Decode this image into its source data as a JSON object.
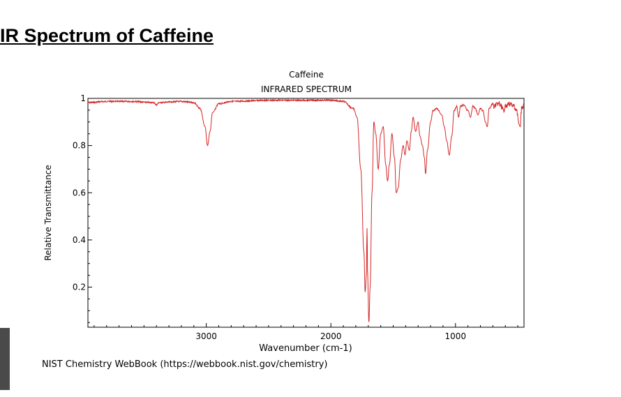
{
  "heading": " IR Spectrum of Caffeine",
  "source": "NIST Chemistry WebBook (https://webbook.nist.gov/chemistry)",
  "chart_data": {
    "type": "line",
    "title": "Caffeine",
    "subtitle": "INFRARED SPECTRUM",
    "xlabel": "Wavenumber (cm-1)",
    "ylabel": "Relative Transmittance",
    "xlim": [
      3950,
      450
    ],
    "ylim": [
      0.03,
      1.0
    ],
    "x_reversed": true,
    "x_ticks": [
      3000,
      2000,
      1000
    ],
    "x_tick_labels": [
      "3000",
      "2000",
      "1000"
    ],
    "y_ticks": [
      0.2,
      0.4,
      0.6,
      0.8,
      1.0
    ],
    "y_tick_labels": [
      "0.2",
      "0.4",
      "0.6",
      "0.8",
      "1"
    ],
    "grid": false,
    "series": [
      {
        "color": "#d62728",
        "baseline": 0.99,
        "points": [
          [
            3950,
            0.985
          ],
          [
            3800,
            0.99
          ],
          [
            3600,
            0.99
          ],
          [
            3420,
            0.985
          ],
          [
            3400,
            0.975
          ],
          [
            3380,
            0.985
          ],
          [
            3200,
            0.99
          ],
          [
            3100,
            0.985
          ],
          [
            3050,
            0.96
          ],
          [
            3010,
            0.88
          ],
          [
            2990,
            0.8
          ],
          [
            2970,
            0.86
          ],
          [
            2950,
            0.94
          ],
          [
            2900,
            0.98
          ],
          [
            2800,
            0.99
          ],
          [
            2500,
            0.995
          ],
          [
            2000,
            0.995
          ],
          [
            1900,
            0.99
          ],
          [
            1820,
            0.96
          ],
          [
            1790,
            0.92
          ],
          [
            1760,
            0.7
          ],
          [
            1735,
            0.35
          ],
          [
            1725,
            0.18
          ],
          [
            1715,
            0.25
          ],
          [
            1710,
            0.45
          ],
          [
            1705,
            0.25
          ],
          [
            1695,
            0.05
          ],
          [
            1685,
            0.2
          ],
          [
            1670,
            0.6
          ],
          [
            1655,
            0.9
          ],
          [
            1640,
            0.85
          ],
          [
            1620,
            0.7
          ],
          [
            1600,
            0.85
          ],
          [
            1580,
            0.88
          ],
          [
            1560,
            0.72
          ],
          [
            1545,
            0.65
          ],
          [
            1530,
            0.72
          ],
          [
            1510,
            0.85
          ],
          [
            1490,
            0.75
          ],
          [
            1475,
            0.6
          ],
          [
            1460,
            0.62
          ],
          [
            1440,
            0.74
          ],
          [
            1420,
            0.8
          ],
          [
            1405,
            0.76
          ],
          [
            1390,
            0.82
          ],
          [
            1370,
            0.78
          ],
          [
            1355,
            0.86
          ],
          [
            1340,
            0.92
          ],
          [
            1320,
            0.86
          ],
          [
            1300,
            0.9
          ],
          [
            1285,
            0.84
          ],
          [
            1265,
            0.8
          ],
          [
            1250,
            0.75
          ],
          [
            1240,
            0.68
          ],
          [
            1225,
            0.78
          ],
          [
            1200,
            0.9
          ],
          [
            1180,
            0.95
          ],
          [
            1150,
            0.96
          ],
          [
            1110,
            0.93
          ],
          [
            1090,
            0.88
          ],
          [
            1070,
            0.82
          ],
          [
            1050,
            0.76
          ],
          [
            1030,
            0.84
          ],
          [
            1010,
            0.95
          ],
          [
            990,
            0.97
          ],
          [
            975,
            0.92
          ],
          [
            960,
            0.97
          ],
          [
            930,
            0.975
          ],
          [
            900,
            0.95
          ],
          [
            880,
            0.92
          ],
          [
            860,
            0.97
          ],
          [
            840,
            0.96
          ],
          [
            820,
            0.93
          ],
          [
            800,
            0.96
          ],
          [
            780,
            0.95
          ],
          [
            760,
            0.9
          ],
          [
            745,
            0.88
          ],
          [
            730,
            0.96
          ],
          [
            700,
            0.98
          ],
          [
            650,
            0.99
          ],
          [
            620,
            0.97
          ],
          [
            610,
            0.95
          ],
          [
            600,
            0.98
          ],
          [
            560,
            0.99
          ],
          [
            530,
            0.98
          ],
          [
            510,
            0.96
          ],
          [
            490,
            0.89
          ],
          [
            480,
            0.88
          ],
          [
            470,
            0.97
          ],
          [
            450,
            0.985
          ]
        ]
      }
    ]
  }
}
